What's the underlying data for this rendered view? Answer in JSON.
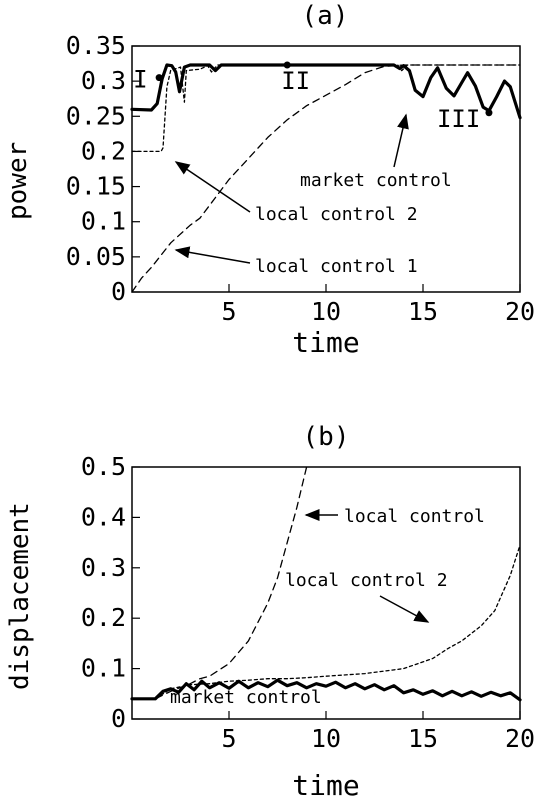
{
  "chart_data": [
    {
      "title": "(a)",
      "type": "line",
      "xlabel": "time",
      "ylabel": "power",
      "xlim": [
        0,
        20
      ],
      "ylim": [
        0,
        0.35
      ],
      "x_ticks": [
        "5",
        "10",
        "15",
        "20"
      ],
      "y_ticks": [
        "0",
        "0.05",
        "0.1",
        "0.15",
        "0.2",
        "0.25",
        "0.3",
        "0.35"
      ],
      "grid": false,
      "series": [
        {
          "name": "market control",
          "style": "solid-thick",
          "points": [
            [
              0,
              0.26
            ],
            [
              1.0,
              0.259
            ],
            [
              1.3,
              0.268
            ],
            [
              1.55,
              0.303
            ],
            [
              1.8,
              0.323
            ],
            [
              2.05,
              0.322
            ],
            [
              2.25,
              0.313
            ],
            [
              2.45,
              0.285
            ],
            [
              2.7,
              0.32
            ],
            [
              3.0,
              0.323
            ],
            [
              4.0,
              0.323
            ],
            [
              4.3,
              0.315
            ],
            [
              4.6,
              0.323
            ],
            [
              13.5,
              0.323
            ],
            [
              13.8,
              0.318
            ],
            [
              14.0,
              0.322
            ],
            [
              14.3,
              0.315
            ],
            [
              14.6,
              0.287
            ],
            [
              15.0,
              0.278
            ],
            [
              15.4,
              0.305
            ],
            [
              15.75,
              0.319
            ],
            [
              16.2,
              0.29
            ],
            [
              16.6,
              0.279
            ],
            [
              17.0,
              0.298
            ],
            [
              17.3,
              0.312
            ],
            [
              17.7,
              0.293
            ],
            [
              18.1,
              0.263
            ],
            [
              18.4,
              0.258
            ],
            [
              18.8,
              0.278
            ],
            [
              19.2,
              0.3
            ],
            [
              19.5,
              0.292
            ],
            [
              20.0,
              0.248
            ]
          ]
        },
        {
          "name": "local control 2",
          "style": "short-dashed",
          "points": [
            [
              0,
              0.2
            ],
            [
              1.5,
              0.2
            ],
            [
              1.6,
              0.205
            ],
            [
              1.8,
              0.292
            ],
            [
              2.0,
              0.316
            ],
            [
              2.3,
              0.318
            ],
            [
              2.5,
              0.32
            ],
            [
              2.7,
              0.27
            ],
            [
              2.8,
              0.315
            ],
            [
              3.5,
              0.317
            ],
            [
              3.9,
              0.322
            ],
            [
              4.1,
              0.313
            ],
            [
              4.4,
              0.323
            ],
            [
              13.7,
              0.323
            ],
            [
              13.9,
              0.315
            ],
            [
              14.2,
              0.323
            ],
            [
              20,
              0.323
            ]
          ]
        },
        {
          "name": "local control 1",
          "style": "long-dashed",
          "points": [
            [
              0,
              0.0
            ],
            [
              0.5,
              0.02
            ],
            [
              1,
              0.035
            ],
            [
              2,
              0.07
            ],
            [
              3,
              0.095
            ],
            [
              3.5,
              0.105
            ],
            [
              5,
              0.16
            ],
            [
              6,
              0.19
            ],
            [
              7,
              0.22
            ],
            [
              8,
              0.245
            ],
            [
              9,
              0.265
            ],
            [
              10,
              0.28
            ],
            [
              11,
              0.295
            ],
            [
              12,
              0.312
            ],
            [
              13,
              0.321
            ],
            [
              14,
              0.323
            ],
            [
              20,
              0.323
            ]
          ]
        }
      ],
      "markers": [
        {
          "label": "I",
          "x": 1.4,
          "y": 0.305
        },
        {
          "label": "II",
          "x": 8.0,
          "y": 0.323
        },
        {
          "label": "III",
          "x": 18.4,
          "y": 0.255
        }
      ],
      "annotations": [
        {
          "text": "market control",
          "target_x": 14.0,
          "target_y": 0.31
        },
        {
          "text": "local control 2",
          "target_x": 1.8,
          "target_y": 0.2
        },
        {
          "text": "local control 1",
          "target_x": 1.8,
          "target_y": 0.063
        }
      ]
    },
    {
      "title": "(b)",
      "type": "line",
      "xlabel": "time",
      "ylabel": "displacement",
      "xlim": [
        0,
        20
      ],
      "ylim": [
        0,
        0.5
      ],
      "x_ticks": [
        "5",
        "10",
        "15",
        "20"
      ],
      "y_ticks": [
        "0",
        "0.1",
        "0.2",
        "0.3",
        "0.4",
        "0.5"
      ],
      "grid": false,
      "series": [
        {
          "name": "local control",
          "style": "long-dashed",
          "points": [
            [
              0,
              0.04
            ],
            [
              1.2,
              0.04
            ],
            [
              2,
              0.055
            ],
            [
              3,
              0.07
            ],
            [
              3.5,
              0.08
            ],
            [
              4,
              0.085
            ],
            [
              5,
              0.11
            ],
            [
              6,
              0.155
            ],
            [
              7,
              0.23
            ],
            [
              7.5,
              0.28
            ],
            [
              8,
              0.35
            ],
            [
              8.5,
              0.42
            ],
            [
              9,
              0.5
            ]
          ]
        },
        {
          "name": "local control 2",
          "style": "short-dashed",
          "points": [
            [
              0,
              0.04
            ],
            [
              1.2,
              0.04
            ],
            [
              2,
              0.06
            ],
            [
              3,
              0.068
            ],
            [
              4,
              0.07
            ],
            [
              5,
              0.075
            ],
            [
              6,
              0.077
            ],
            [
              7,
              0.08
            ],
            [
              8,
              0.08
            ],
            [
              9,
              0.082
            ],
            [
              10,
              0.085
            ],
            [
              12,
              0.09
            ],
            [
              13,
              0.095
            ],
            [
              14,
              0.1
            ],
            [
              15.5,
              0.12
            ],
            [
              16.3,
              0.14
            ],
            [
              17,
              0.155
            ],
            [
              18,
              0.185
            ],
            [
              18.7,
              0.215
            ],
            [
              19.5,
              0.285
            ],
            [
              20,
              0.345
            ]
          ]
        },
        {
          "name": "market control",
          "style": "solid-thick",
          "points": [
            [
              0,
              0.04
            ],
            [
              1.2,
              0.04
            ],
            [
              1.6,
              0.055
            ],
            [
              2,
              0.06
            ],
            [
              2.4,
              0.053
            ],
            [
              2.8,
              0.07
            ],
            [
              3.2,
              0.058
            ],
            [
              3.6,
              0.075
            ],
            [
              4.0,
              0.062
            ],
            [
              4.5,
              0.072
            ],
            [
              5,
              0.061
            ],
            [
              5.5,
              0.075
            ],
            [
              6,
              0.062
            ],
            [
              6.5,
              0.072
            ],
            [
              7,
              0.064
            ],
            [
              7.5,
              0.077
            ],
            [
              8,
              0.066
            ],
            [
              8.5,
              0.072
            ],
            [
              9,
              0.062
            ],
            [
              9.5,
              0.07
            ],
            [
              10,
              0.065
            ],
            [
              10.5,
              0.073
            ],
            [
              11,
              0.062
            ],
            [
              11.5,
              0.07
            ],
            [
              12,
              0.06
            ],
            [
              12.5,
              0.068
            ],
            [
              13,
              0.058
            ],
            [
              13.5,
              0.066
            ],
            [
              14,
              0.052
            ],
            [
              14.5,
              0.058
            ],
            [
              15,
              0.049
            ],
            [
              15.5,
              0.056
            ],
            [
              16,
              0.046
            ],
            [
              16.5,
              0.055
            ],
            [
              17,
              0.046
            ],
            [
              17.5,
              0.054
            ],
            [
              18,
              0.045
            ],
            [
              18.5,
              0.053
            ],
            [
              19,
              0.046
            ],
            [
              19.5,
              0.052
            ],
            [
              20,
              0.038
            ]
          ]
        }
      ],
      "annotations": [
        {
          "text": "local control",
          "target_x": 8.7,
          "target_y": 0.405
        },
        {
          "text": "local control 2",
          "target_x": 17.2,
          "target_y": 0.165
        },
        {
          "text": "market control",
          "target_x": null,
          "target_y": null
        }
      ]
    }
  ]
}
